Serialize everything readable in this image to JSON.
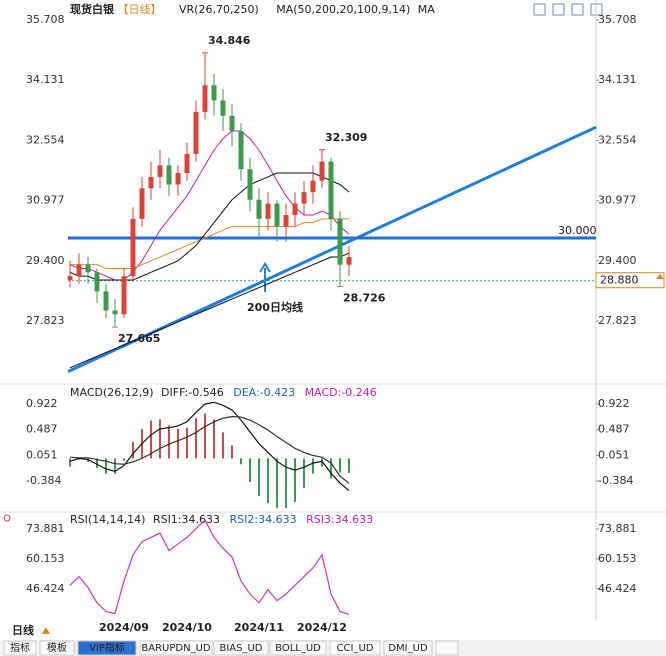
{
  "header": {
    "title": "现货白银",
    "period": "【日线】",
    "indicators": [
      "VR(26,70,250)",
      "MA(50,200,20,100,9,14)",
      "MA"
    ]
  },
  "chart_data": [
    {
      "type": "candlestick",
      "up_color": "#d9443a",
      "down_color": "#3f9a4f",
      "ylim": [
        26.28,
        36.1
      ],
      "yticks": [
        35.708,
        34.131,
        32.554,
        30.977,
        {
          "value": 29.4,
          "label": "29.400"
        },
        27.823
      ],
      "ohlc": [
        [
          28.9,
          29.4,
          28.7,
          29.0
        ],
        [
          29.0,
          29.6,
          28.8,
          29.3
        ],
        [
          29.3,
          29.5,
          28.8,
          29.1
        ],
        [
          29.1,
          29.2,
          28.3,
          28.6
        ],
        [
          28.6,
          28.8,
          27.9,
          28.1
        ],
        [
          28.1,
          28.4,
          27.665,
          28.0
        ],
        [
          28.0,
          29.2,
          27.9,
          29.0
        ],
        [
          29.0,
          30.8,
          28.9,
          30.5
        ],
        [
          30.5,
          31.6,
          30.3,
          31.3
        ],
        [
          31.3,
          32.0,
          31.0,
          31.6
        ],
        [
          31.6,
          32.3,
          31.3,
          31.9
        ],
        [
          31.9,
          32.1,
          31.1,
          31.4
        ],
        [
          31.4,
          31.9,
          31.1,
          31.7
        ],
        [
          31.7,
          32.5,
          31.5,
          32.2
        ],
        [
          32.2,
          33.6,
          32.0,
          33.3
        ],
        [
          33.3,
          34.846,
          33.1,
          34.0
        ],
        [
          34.0,
          34.3,
          33.2,
          33.6
        ],
        [
          33.6,
          33.9,
          32.8,
          33.2
        ],
        [
          33.2,
          33.5,
          32.4,
          32.8
        ],
        [
          32.8,
          33.0,
          31.5,
          31.8
        ],
        [
          31.8,
          32.1,
          30.7,
          31.0
        ],
        [
          31.0,
          31.3,
          30.0,
          30.5
        ],
        [
          30.5,
          31.2,
          30.2,
          30.9
        ],
        [
          30.9,
          31.0,
          29.9,
          30.3
        ],
        [
          30.3,
          30.9,
          29.9,
          30.6
        ],
        [
          30.6,
          31.2,
          30.3,
          30.9
        ],
        [
          30.9,
          31.5,
          30.6,
          31.2
        ],
        [
          31.2,
          31.9,
          30.9,
          31.5
        ],
        [
          31.5,
          32.309,
          31.3,
          32.0
        ],
        [
          32.0,
          32.1,
          30.2,
          30.5
        ],
        [
          30.5,
          30.7,
          28.726,
          29.3
        ],
        [
          29.3,
          29.8,
          29.0,
          29.5
        ]
      ],
      "series": [
        {
          "color": "#c21fb8",
          "values": [
            29.3,
            29.2,
            29.2,
            29.1,
            29.0,
            28.9,
            28.9,
            29.1,
            29.4,
            29.8,
            30.2,
            30.5,
            30.8,
            31.1,
            31.5,
            31.9,
            32.3,
            32.6,
            32.8,
            32.8,
            32.6,
            32.3,
            31.9,
            31.5,
            31.1,
            30.8,
            30.6,
            30.6,
            30.7,
            30.6,
            30.3,
            30.1
          ]
        },
        {
          "color": "#e08a1e",
          "values": [
            29.3,
            29.3,
            29.3,
            29.3,
            29.2,
            29.2,
            29.2,
            29.2,
            29.3,
            29.4,
            29.5,
            29.6,
            29.7,
            29.8,
            29.9,
            30.0,
            30.1,
            30.2,
            30.3,
            30.3,
            30.3,
            30.3,
            30.3,
            30.3,
            30.3,
            30.3,
            30.4,
            30.4,
            30.5,
            30.5,
            30.5,
            30.5
          ]
        },
        {
          "color": "#111111",
          "values": [
            29.1,
            29.0,
            29.0,
            28.9,
            28.9,
            28.9,
            28.9,
            28.9,
            29.0,
            29.1,
            29.2,
            29.3,
            29.4,
            29.6,
            29.8,
            30.1,
            30.4,
            30.7,
            31.0,
            31.2,
            31.4,
            31.5,
            31.6,
            31.7,
            31.7,
            31.7,
            31.7,
            31.7,
            31.6,
            31.5,
            31.4,
            31.2
          ]
        },
        {
          "color": "#111111",
          "values": [
            26.6,
            26.7,
            26.8,
            26.9,
            27.0,
            27.1,
            27.2,
            27.3,
            27.4,
            27.5,
            27.6,
            27.7,
            27.8,
            27.9,
            28.0,
            28.1,
            28.2,
            28.3,
            28.4,
            28.5,
            28.6,
            28.7,
            28.8,
            28.9,
            29.0,
            29.1,
            29.2,
            29.3,
            29.4,
            29.5,
            29.5,
            29.6
          ]
        }
      ],
      "annotations": [
        {
          "value": 34.846,
          "index": 15,
          "color": "#d9443a",
          "position": "above"
        },
        {
          "value": 32.309,
          "index": 28,
          "color": "#d9443a",
          "position": "above"
        },
        {
          "value": 27.665,
          "index": 5,
          "color": "#6a9a6a",
          "position": "below"
        },
        {
          "value": 28.726,
          "index": 30,
          "color": "#6a9a6a",
          "position": "below"
        }
      ],
      "hline": {
        "value": 30,
        "label": "30.000",
        "color": "#1e6fd9"
      },
      "current": {
        "value": 28.88,
        "label": "28.880",
        "color": "#e08a1e"
      },
      "trendline": {
        "values": [
          26.5,
          32.9
        ],
        "color": "#1e7fe0",
        "label": "200日均线",
        "label_color": "#d42020"
      }
    },
    {
      "type": "macd",
      "legend": [
        {
          "text": "MACD(26,12,9)",
          "color": "#222222"
        },
        {
          "text": "DIFF:-0.546",
          "color": "#222222"
        },
        {
          "text": "DEA:-0.423",
          "color": "#1e5fc0"
        },
        {
          "text": "MACD:-0.246",
          "color": "#c21fb8"
        }
      ],
      "ylim": [
        -0.875,
        1.193
      ],
      "yticks": [
        0.922,
        0.487,
        0.051,
        -0.384
      ],
      "series": [
        {
          "color": "#111111",
          "values": [
            -0.05,
            0.0,
            -0.02,
            -0.1,
            -0.18,
            -0.22,
            -0.12,
            0.08,
            0.25,
            0.4,
            0.5,
            0.52,
            0.55,
            0.62,
            0.78,
            0.92,
            0.95,
            0.9,
            0.82,
            0.65,
            0.45,
            0.25,
            0.1,
            -0.05,
            -0.15,
            -0.2,
            -0.15,
            -0.08,
            -0.05,
            -0.25,
            -0.42,
            -0.546
          ]
        },
        {
          "color": "#333333",
          "values": [
            0.02,
            0.01,
            0.01,
            -0.02,
            -0.05,
            -0.09,
            -0.1,
            -0.06,
            0.0,
            0.08,
            0.17,
            0.24,
            0.3,
            0.36,
            0.44,
            0.54,
            0.62,
            0.68,
            0.71,
            0.7,
            0.65,
            0.57,
            0.48,
            0.37,
            0.27,
            0.17,
            0.1,
            0.05,
            0.02,
            -0.08,
            -0.3,
            -0.423
          ]
        }
      ],
      "histogram": {
        "up_color": "#c0504d",
        "down_color": "#3f9a4f",
        "values": [
          -0.14,
          -0.02,
          -0.06,
          -0.16,
          -0.26,
          -0.26,
          -0.04,
          0.28,
          0.5,
          0.64,
          0.66,
          0.56,
          0.5,
          0.52,
          0.68,
          0.76,
          0.66,
          0.44,
          0.22,
          -0.1,
          -0.4,
          -0.64,
          -0.76,
          -0.84,
          -0.84,
          -0.74,
          -0.5,
          -0.26,
          -0.14,
          -0.34,
          -0.24,
          -0.246
        ]
      }
    },
    {
      "type": "line",
      "legend": [
        {
          "text": "RSI(14,14,14)",
          "color": "#222222"
        },
        {
          "text": "RSI1:34.633",
          "color": "#222222"
        },
        {
          "text": "RSI2:34.633",
          "color": "#1e5fc0"
        },
        {
          "text": "RSI3:34.633",
          "color": "#c21fb8"
        }
      ],
      "ylim": [
        33.0,
        80.29
      ],
      "yticks": [
        73.881,
        60.153,
        46.424
      ],
      "series": [
        {
          "color": "#c837c8",
          "values": [
            48,
            52,
            47,
            40,
            36,
            35,
            50,
            62,
            68,
            70,
            72,
            64,
            67,
            70,
            74,
            78,
            70,
            65,
            61,
            50,
            44,
            40,
            46,
            41,
            44,
            48,
            52,
            56,
            62,
            44,
            36,
            34.633
          ]
        }
      ],
      "xtick_labels": [
        "2024/09",
        "2024/10",
        "2024/11",
        "2024/12"
      ]
    }
  ],
  "footer": {
    "period": "日线",
    "tabs": [
      "指标",
      "模板",
      "VIP指标",
      "BARUPDN_UD",
      "BIAS_UD",
      "BOLL_UD",
      "CCI_UD",
      "DMI_UD"
    ],
    "active_tab": 2
  }
}
